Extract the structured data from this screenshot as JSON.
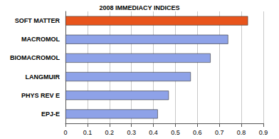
{
  "chart_data": {
    "type": "bar",
    "orientation": "horizontal",
    "title": "2008 IMMEDIACY INDICES",
    "categories": [
      "SOFT MATTER",
      "MACROMOL",
      "BIOMACROMOL",
      "LANGMUIR",
      "PHYS REV E",
      "EPJ-E"
    ],
    "values": [
      0.83,
      0.74,
      0.66,
      0.57,
      0.47,
      0.42
    ],
    "colors": [
      "#e8541c",
      "#8ea2e8",
      "#8ea2e8",
      "#8ea2e8",
      "#8ea2e8",
      "#8ea2e8"
    ],
    "xlim": [
      0,
      0.9
    ],
    "xticks": [
      0,
      0.1,
      0.2,
      0.3,
      0.4,
      0.5,
      0.6,
      0.7,
      0.8,
      0.9
    ],
    "grid": true
  }
}
